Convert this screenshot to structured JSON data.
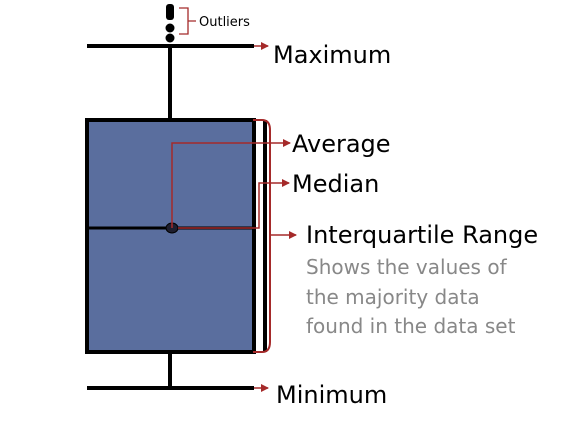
{
  "labels": {
    "outliers": "Outliers",
    "maximum": "Maximum",
    "average": "Average",
    "median": "Median",
    "iqr": "Interquartile Range",
    "description": [
      "Shows the values of",
      "the majority data",
      "found in the data set"
    ],
    "minimum": "Minimum"
  },
  "colors": {
    "box_fill": "#5a6e9e",
    "stroke": "#000000",
    "annotation": "#a52a2a",
    "description_text": "#888888"
  }
}
